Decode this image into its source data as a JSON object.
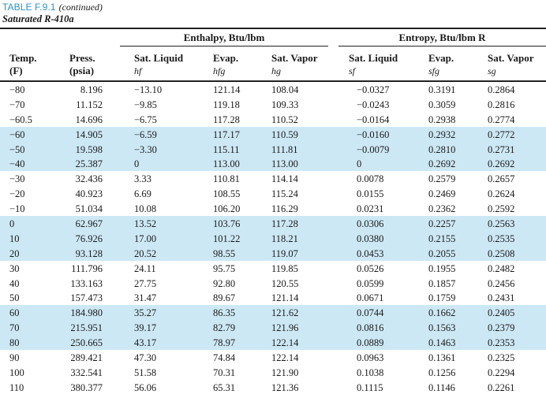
{
  "caption": {
    "label": "TABLE F.9.1",
    "continued": "(continued)",
    "subtitle": "Saturated R-410a"
  },
  "groups": {
    "enthalpy": "Enthalpy, Btu/lbm",
    "entropy": "Entropy, Btu/lbm R"
  },
  "columns": [
    {
      "label": "Temp.",
      "sub": "(F)",
      "sym": ""
    },
    {
      "label": "Press.",
      "sub": "(psia)",
      "sym": ""
    },
    {
      "label": "Sat. Liquid",
      "sub": "",
      "sym": "hf"
    },
    {
      "label": "Evap.",
      "sub": "",
      "sym": "hfg"
    },
    {
      "label": "Sat. Vapor",
      "sub": "",
      "sym": "hg"
    },
    {
      "label": "Sat. Liquid",
      "sub": "",
      "sym": "sf"
    },
    {
      "label": "Evap.",
      "sub": "",
      "sym": "sfg"
    },
    {
      "label": "Sat. Vapor",
      "sub": "",
      "sym": "sg"
    }
  ],
  "rows": [
    {
      "shaded": false,
      "cells": [
        "−80",
        "8.196",
        "−13.10",
        "121.14",
        "108.04",
        "−0.0327",
        "0.3191",
        "0.2864"
      ]
    },
    {
      "shaded": false,
      "cells": [
        "−70",
        "11.152",
        "−9.85",
        "119.18",
        "109.33",
        "−0.0243",
        "0.3059",
        "0.2816"
      ]
    },
    {
      "shaded": false,
      "cells": [
        "−60.5",
        "14.696",
        "−6.75",
        "117.28",
        "110.52",
        "−0.0164",
        "0.2938",
        "0.2774"
      ]
    },
    {
      "shaded": true,
      "cells": [
        "−60",
        "14.905",
        "−6.59",
        "117.17",
        "110.59",
        "−0.0160",
        "0.2932",
        "0.2772"
      ]
    },
    {
      "shaded": true,
      "cells": [
        "−50",
        "19.598",
        "−3.30",
        "115.11",
        "111.81",
        "−0.0079",
        "0.2810",
        "0.2731"
      ]
    },
    {
      "shaded": true,
      "cells": [
        "−40",
        "25.387",
        "0",
        "113.00",
        "113.00",
        "0",
        "0.2692",
        "0.2692"
      ]
    },
    {
      "shaded": false,
      "cells": [
        "−30",
        "32.436",
        "3.33",
        "110.81",
        "114.14",
        "0.0078",
        "0.2579",
        "0.2657"
      ]
    },
    {
      "shaded": false,
      "cells": [
        "−20",
        "40.923",
        "6.69",
        "108.55",
        "115.24",
        "0.0155",
        "0.2469",
        "0.2624"
      ]
    },
    {
      "shaded": false,
      "cells": [
        "−10",
        "51.034",
        "10.08",
        "106.20",
        "116.29",
        "0.0231",
        "0.2362",
        "0.2592"
      ]
    },
    {
      "shaded": true,
      "cells": [
        "0",
        "62.967",
        "13.52",
        "103.76",
        "117.28",
        "0.0306",
        "0.2257",
        "0.2563"
      ]
    },
    {
      "shaded": true,
      "cells": [
        "10",
        "76.926",
        "17.00",
        "101.22",
        "118.21",
        "0.0380",
        "0.2155",
        "0.2535"
      ]
    },
    {
      "shaded": true,
      "cells": [
        "20",
        "93.128",
        "20.52",
        "98.55",
        "119.07",
        "0.0453",
        "0.2055",
        "0.2508"
      ]
    },
    {
      "shaded": false,
      "cells": [
        "30",
        "111.796",
        "24.11",
        "95.75",
        "119.85",
        "0.0526",
        "0.1955",
        "0.2482"
      ]
    },
    {
      "shaded": false,
      "cells": [
        "40",
        "133.163",
        "27.75",
        "92.80",
        "120.55",
        "0.0599",
        "0.1857",
        "0.2456"
      ]
    },
    {
      "shaded": false,
      "cells": [
        "50",
        "157.473",
        "31.47",
        "89.67",
        "121.14",
        "0.0671",
        "0.1759",
        "0.2431"
      ]
    },
    {
      "shaded": true,
      "cells": [
        "60",
        "184.980",
        "35.27",
        "86.35",
        "121.62",
        "0.0744",
        "0.1662",
        "0.2405"
      ]
    },
    {
      "shaded": true,
      "cells": [
        "70",
        "215.951",
        "39.17",
        "82.79",
        "121.96",
        "0.0816",
        "0.1563",
        "0.2379"
      ]
    },
    {
      "shaded": true,
      "cells": [
        "80",
        "250.665",
        "43.17",
        "78.97",
        "122.14",
        "0.0889",
        "0.1463",
        "0.2353"
      ]
    },
    {
      "shaded": false,
      "cells": [
        "90",
        "289.421",
        "47.30",
        "74.84",
        "122.14",
        "0.0963",
        "0.1361",
        "0.2325"
      ]
    },
    {
      "shaded": false,
      "cells": [
        "100",
        "332.541",
        "51.58",
        "70.31",
        "121.90",
        "0.1038",
        "0.1256",
        "0.2294"
      ]
    },
    {
      "shaded": false,
      "cells": [
        "110",
        "380.377",
        "56.06",
        "65.31",
        "121.36",
        "0.1115",
        "0.1146",
        "0.2261"
      ]
    }
  ]
}
